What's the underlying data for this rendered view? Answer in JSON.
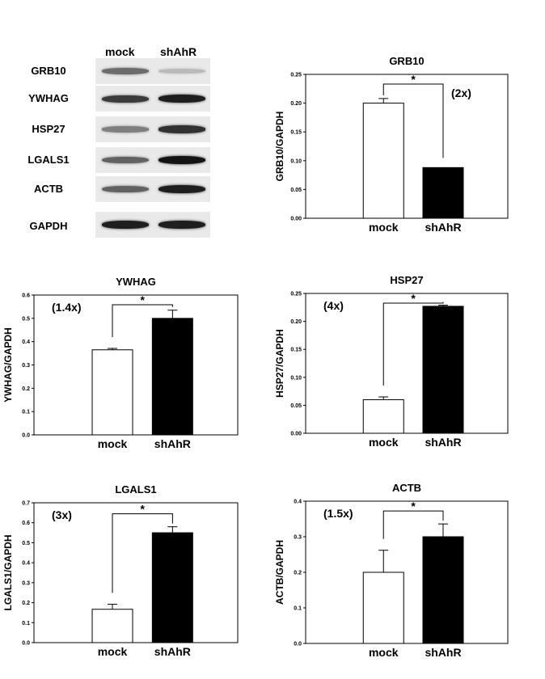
{
  "blot": {
    "columns": [
      "mock",
      "shAhR"
    ],
    "rows": [
      {
        "label": "GRB10",
        "mock": 0.55,
        "shAhR": 0.15
      },
      {
        "label": "YWHAG",
        "mock": 0.8,
        "shAhR": 0.95
      },
      {
        "label": "HSP27",
        "mock": 0.45,
        "shAhR": 0.85
      },
      {
        "label": "LGALS1",
        "mock": 0.6,
        "shAhR": 1.0
      },
      {
        "label": "ACTB",
        "mock": 0.6,
        "shAhR": 0.95
      },
      {
        "label": "GAPDH",
        "mock": 0.95,
        "shAhR": 0.95
      }
    ]
  },
  "chart_data": [
    {
      "type": "bar",
      "title": "GRB10",
      "ylabel": "GRB10/GAPDH",
      "categories": [
        "mock",
        "shAhR"
      ],
      "values": [
        0.2,
        0.088
      ],
      "errors": [
        0.008,
        0
      ],
      "ylim": [
        0,
        0.25
      ],
      "yticks": [
        "0.00",
        "0.05",
        "0.10",
        "0.15",
        "0.20",
        "0.25"
      ],
      "fold": "(2x)",
      "significance": "*",
      "colors": [
        "#ffffff",
        "#000000"
      ]
    },
    {
      "type": "bar",
      "title": "YWHAG",
      "ylabel": "YWHAG/GAPDH",
      "categories": [
        "mock",
        "shAhR"
      ],
      "values": [
        0.365,
        0.5
      ],
      "errors": [
        0.006,
        0.035
      ],
      "ylim": [
        0,
        0.6
      ],
      "yticks": [
        "0.0",
        "0.1",
        "0.2",
        "0.3",
        "0.4",
        "0.5",
        "0.6"
      ],
      "fold": "(1.4x)",
      "significance": "*",
      "colors": [
        "#ffffff",
        "#000000"
      ]
    },
    {
      "type": "bar",
      "title": "HSP27",
      "ylabel": "HSP27/GAPDH",
      "categories": [
        "mock",
        "shAhR"
      ],
      "values": [
        0.06,
        0.227
      ],
      "errors": [
        0.005,
        0.002
      ],
      "ylim": [
        0,
        0.25
      ],
      "yticks": [
        "0.00",
        "0.05",
        "0.10",
        "0.15",
        "0.20",
        "0.25"
      ],
      "fold": "(4x)",
      "significance": "*",
      "colors": [
        "#ffffff",
        "#000000"
      ]
    },
    {
      "type": "bar",
      "title": "LGALS1",
      "ylabel": "LGALS1/GAPDH",
      "categories": [
        "mock",
        "shAhR"
      ],
      "values": [
        0.167,
        0.55
      ],
      "errors": [
        0.025,
        0.03
      ],
      "ylim": [
        0,
        0.7
      ],
      "yticks": [
        "0.0",
        "0.1",
        "0.2",
        "0.3",
        "0.4",
        "0.5",
        "0.6",
        "0.7"
      ],
      "fold": "(3x)",
      "significance": "*",
      "colors": [
        "#ffffff",
        "#000000"
      ]
    },
    {
      "type": "bar",
      "title": "ACTB",
      "ylabel": "ACTB/GAPDH",
      "categories": [
        "mock",
        "shAhR"
      ],
      "values": [
        0.2,
        0.3
      ],
      "errors": [
        0.062,
        0.036
      ],
      "ylim": [
        0,
        0.4
      ],
      "yticks": [
        "0.0",
        "0.1",
        "0.2",
        "0.3",
        "0.4"
      ],
      "fold": "(1.5x)",
      "significance": "*",
      "colors": [
        "#ffffff",
        "#000000"
      ]
    }
  ]
}
